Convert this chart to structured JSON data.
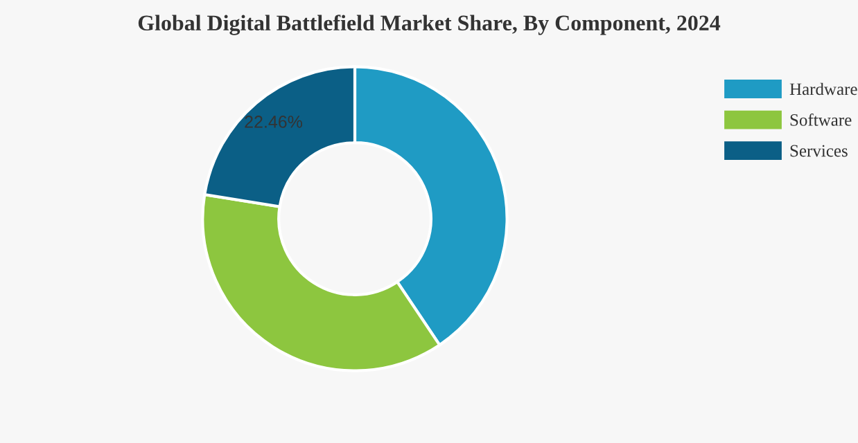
{
  "chart_data": {
    "type": "donut",
    "title": "Global Digital Battlefield Market Share, By Component, 2024",
    "categories": [
      "Hardware",
      "Software",
      "Services"
    ],
    "values": [
      40.6,
      36.94,
      22.46
    ],
    "colors": [
      "#1f9bc4",
      "#8dc63f",
      "#0b5f86"
    ],
    "value_labels": [
      null,
      null,
      "22.46%"
    ],
    "legend": "top right"
  }
}
